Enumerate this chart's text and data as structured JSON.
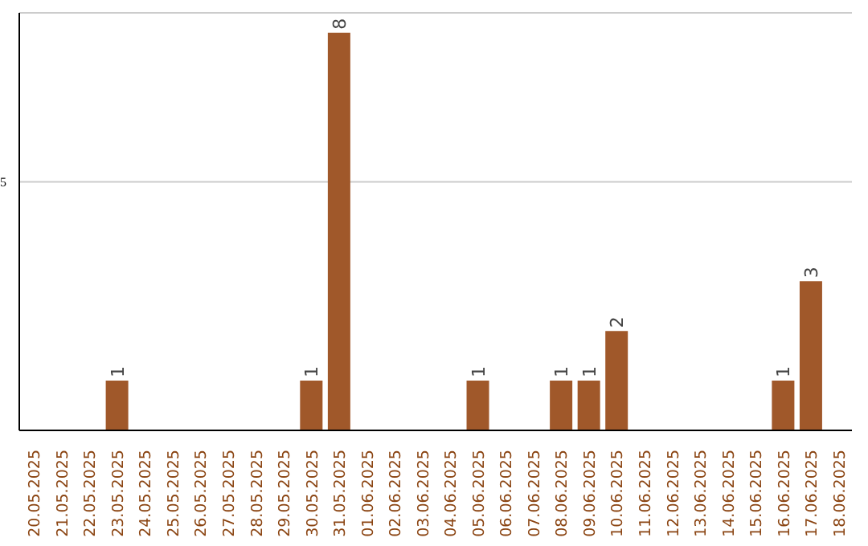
{
  "chart_data": {
    "type": "bar",
    "categories": [
      "20.05.2025",
      "21.05.2025",
      "22.05.2025",
      "23.05.2025",
      "24.05.2025",
      "25.05.2025",
      "26.05.2025",
      "27.05.2025",
      "28.05.2025",
      "29.05.2025",
      "30.05.2025",
      "31.05.2025",
      "01.06.2025",
      "02.06.2025",
      "03.06.2025",
      "04.06.2025",
      "05.06.2025",
      "06.06.2025",
      "07.06.2025",
      "08.06.2025",
      "09.06.2025",
      "10.06.2025",
      "11.06.2025",
      "12.06.2025",
      "13.06.2025",
      "14.06.2025",
      "15.06.2025",
      "16.06.2025",
      "17.06.2025",
      "18.06.2025"
    ],
    "values": [
      0,
      0,
      0,
      1,
      0,
      0,
      0,
      0,
      0,
      0,
      1,
      8,
      0,
      0,
      0,
      0,
      1,
      0,
      0,
      1,
      1,
      2,
      0,
      0,
      0,
      0,
      0,
      1,
      3,
      0
    ],
    "value_labels": [
      null,
      null,
      null,
      "1",
      null,
      null,
      null,
      null,
      null,
      null,
      "1",
      "8",
      null,
      null,
      null,
      null,
      "1",
      null,
      null,
      "1",
      "1",
      "2",
      null,
      null,
      null,
      null,
      null,
      "1",
      "3",
      null
    ],
    "color": "#a0582a",
    "ylim": [
      0,
      8.4
    ],
    "yticks": [
      5
    ],
    "grid": "y"
  }
}
